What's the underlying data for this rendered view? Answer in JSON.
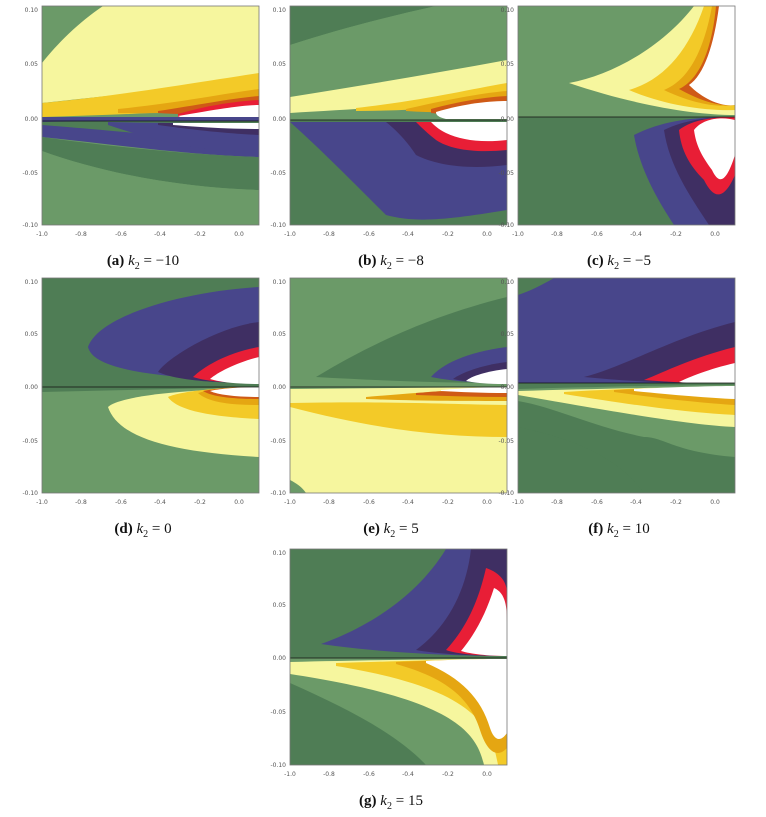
{
  "palette": {
    "dark_green": "#4f7d55",
    "green": "#6b9a68",
    "pale_yellow": "#f6f69e",
    "yellow": "#f3ca28",
    "orange": "#e5a612",
    "burnt": "#cf5a16",
    "red": "#e81e36",
    "dark_purple": "#3f2f63",
    "blue_purple": "#48468b",
    "white": "#ffffff"
  },
  "chart_data": [
    {
      "type": "contour",
      "label": "(a)",
      "variable": "k",
      "subscript": "2",
      "relation": "=",
      "value": "−10",
      "x_ticks": [
        "-1.0",
        "-0.8",
        "-0.6",
        "-0.4",
        "-0.2",
        "0.0"
      ],
      "y_ticks": [
        "0.10",
        "0.05",
        "0.00",
        "-0.05",
        "-0.10"
      ],
      "xlim": [
        -1.0,
        0.1
      ],
      "ylim": [
        -0.1,
        0.1
      ]
    },
    {
      "type": "contour",
      "label": "(b)",
      "variable": "k",
      "subscript": "2",
      "relation": "=",
      "value": "−8",
      "x_ticks": [
        "-1.0",
        "-0.8",
        "-0.6",
        "-0.4",
        "-0.2",
        "0.0"
      ],
      "y_ticks": [
        "0.10",
        "0.05",
        "0.00",
        "-0.05",
        "-0.10"
      ],
      "xlim": [
        -1.0,
        0.1
      ],
      "ylim": [
        -0.1,
        0.1
      ]
    },
    {
      "type": "contour",
      "label": "(c)",
      "variable": "k",
      "subscript": "2",
      "relation": "=",
      "value": "−5",
      "x_ticks": [
        "-1.0",
        "-0.8",
        "-0.6",
        "-0.4",
        "-0.2",
        "0.0"
      ],
      "y_ticks": [
        "0.10",
        "0.05",
        "0.00",
        "-0.05",
        "-0.10"
      ],
      "xlim": [
        -1.0,
        0.1
      ],
      "ylim": [
        -0.1,
        0.1
      ]
    },
    {
      "type": "contour",
      "label": "(d)",
      "variable": "k",
      "subscript": "2",
      "relation": "=",
      "value": "0",
      "x_ticks": [
        "-1.0",
        "-0.8",
        "-0.6",
        "-0.4",
        "-0.2",
        "0.0"
      ],
      "y_ticks": [
        "0.10",
        "0.05",
        "0.00",
        "-0.05",
        "-0.10"
      ],
      "xlim": [
        -1.0,
        0.1
      ],
      "ylim": [
        -0.1,
        0.1
      ]
    },
    {
      "type": "contour",
      "label": "(e)",
      "variable": "k",
      "subscript": "2",
      "relation": "=",
      "value": "5",
      "x_ticks": [
        "-1.0",
        "-0.8",
        "-0.6",
        "-0.4",
        "-0.2",
        "0.0"
      ],
      "y_ticks": [
        "0.10",
        "0.05",
        "0.00",
        "-0.05",
        "-0.10"
      ],
      "xlim": [
        -1.0,
        0.1
      ],
      "ylim": [
        -0.1,
        0.1
      ]
    },
    {
      "type": "contour",
      "label": "(f)",
      "variable": "k",
      "subscript": "2",
      "relation": "=",
      "value": "10",
      "x_ticks": [
        "-1.0",
        "-0.8",
        "-0.6",
        "-0.4",
        "-0.2",
        "0.0"
      ],
      "y_ticks": [
        "0.10",
        "0.05",
        "0.00",
        "-0.05",
        "-0.10"
      ],
      "xlim": [
        -1.0,
        0.1
      ],
      "ylim": [
        -0.1,
        0.1
      ]
    },
    {
      "type": "contour",
      "label": "(g)",
      "variable": "k",
      "subscript": "2",
      "relation": "=",
      "value": "15",
      "x_ticks": [
        "-1.0",
        "-0.8",
        "-0.6",
        "-0.4",
        "-0.2",
        "0.0"
      ],
      "y_ticks": [
        "0.10",
        "0.05",
        "0.00",
        "-0.05",
        "-0.10"
      ],
      "xlim": [
        -1.0,
        0.1
      ],
      "ylim": [
        -0.1,
        0.1
      ]
    }
  ]
}
